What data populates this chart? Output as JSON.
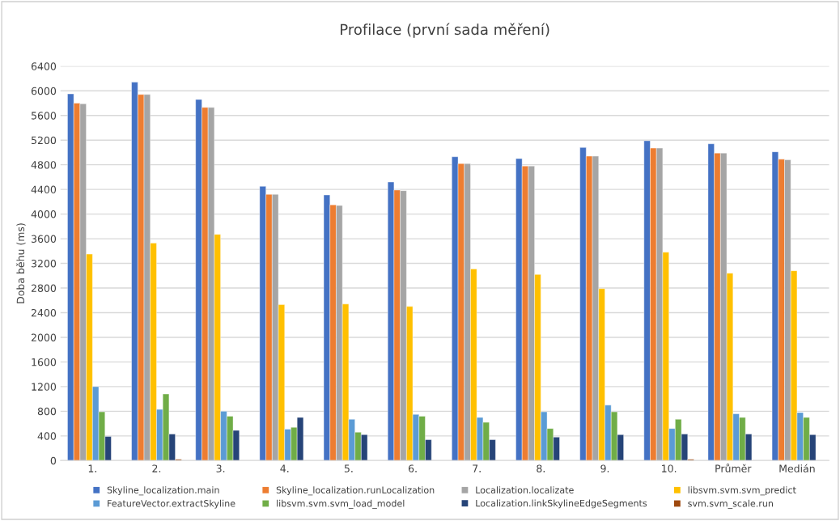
{
  "chart_data": {
    "type": "bar",
    "title": "Profilace (první sada měření)",
    "ylabel": "Doba běhu (ms)",
    "categories": [
      "1.",
      "2.",
      "3.",
      "4.",
      "5.",
      "6.",
      "7.",
      "8.",
      "9.",
      "10.",
      "Průměr",
      "Medián"
    ],
    "series": [
      {
        "name": "Skyline_localization.main",
        "color": "#4472c4",
        "values": [
          5950,
          6140,
          5860,
          4450,
          4310,
          4520,
          4930,
          4900,
          5080,
          5190,
          5140,
          5010
        ]
      },
      {
        "name": "Skyline_localization.runLocalization",
        "color": "#ed7d31",
        "values": [
          5800,
          5940,
          5730,
          4320,
          4150,
          4390,
          4820,
          4780,
          4940,
          5070,
          4990,
          4890
        ]
      },
      {
        "name": "Localization.localizate",
        "color": "#a5a5a5",
        "values": [
          5790,
          5940,
          5730,
          4320,
          4140,
          4380,
          4820,
          4780,
          4940,
          5070,
          4990,
          4880
        ]
      },
      {
        "name": "libsvm.svm.svm_predict",
        "color": "#ffc000",
        "values": [
          3350,
          3530,
          3670,
          2530,
          2540,
          2500,
          3110,
          3020,
          2790,
          3380,
          3040,
          3080
        ]
      },
      {
        "name": "FeatureVector.extractSkyline",
        "color": "#5b9bd5",
        "values": [
          1200,
          830,
          800,
          510,
          670,
          750,
          700,
          790,
          900,
          520,
          760,
          780
        ]
      },
      {
        "name": "libsvm.svm.svm_load_model",
        "color": "#70ad47",
        "values": [
          790,
          1080,
          720,
          540,
          460,
          720,
          620,
          520,
          790,
          670,
          700,
          700
        ]
      },
      {
        "name": "Localization.linkSkylineEdgeSegments",
        "color": "#264478",
        "values": [
          390,
          430,
          490,
          700,
          420,
          340,
          340,
          380,
          420,
          430,
          430,
          420
        ]
      },
      {
        "name": "svm.svm_scale.run",
        "color": "#9e480e",
        "values": [
          null,
          20,
          null,
          null,
          null,
          null,
          null,
          null,
          null,
          20,
          null,
          null
        ]
      }
    ],
    "ylim": [
      0,
      6400
    ],
    "yticks": [
      0,
      400,
      800,
      1200,
      1600,
      2000,
      2400,
      2800,
      3200,
      3600,
      4000,
      4400,
      4800,
      5200,
      5600,
      6000,
      6400
    ],
    "grid": "y",
    "legend": "bottom"
  }
}
